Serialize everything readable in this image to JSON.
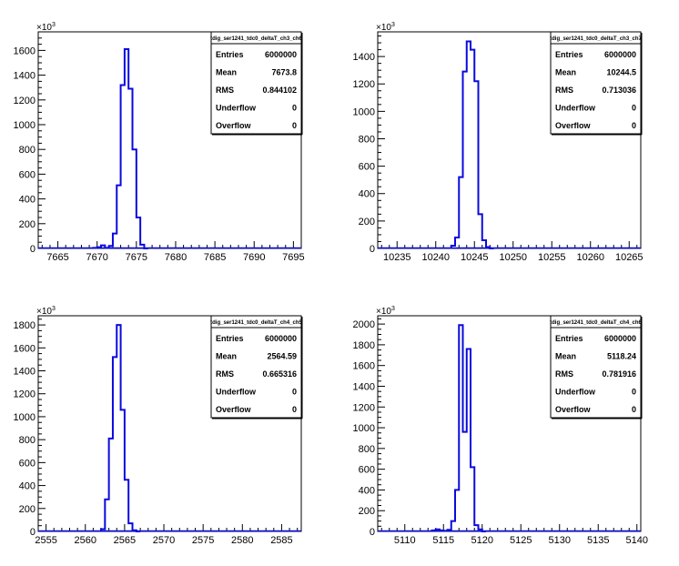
{
  "colors": {
    "hist": "#0a0adc",
    "axis": "#000000",
    "background": "#ffffff"
  },
  "chart_data": [
    {
      "type": "bar",
      "title": "tdig_ser1241_tdc0_deltaT_ch3_ch6",
      "y_multiplier": "10",
      "y_multiplier_exp": "3",
      "xlim": [
        7662.5,
        7696.0
      ],
      "ylim": [
        0,
        1750
      ],
      "x_ticks": [
        7665,
        7670,
        7675,
        7680,
        7685,
        7690,
        7695
      ],
      "y_ticks": [
        0,
        200,
        400,
        600,
        800,
        1000,
        1200,
        1400,
        1600
      ],
      "bin_width": 0.5,
      "bin_edges_start": 7669.5,
      "values": [
        5,
        10,
        25,
        5,
        20,
        120,
        510,
        1320,
        1610,
        1290,
        800,
        250,
        30,
        0
      ],
      "stats": {
        "labels": [
          "Entries",
          "Mean",
          "RMS",
          "Underflow",
          "Overflow"
        ],
        "values": [
          "6000000",
          "7673.8",
          "0.844102",
          "0",
          "0"
        ]
      }
    },
    {
      "type": "bar",
      "title": "tdig_ser1241_tdc0_deltaT_ch3_ch7",
      "y_multiplier": "10",
      "y_multiplier_exp": "3",
      "xlim": [
        10232.5,
        10266.5
      ],
      "ylim": [
        0,
        1580
      ],
      "x_ticks": [
        10235,
        10240,
        10245,
        10250,
        10255,
        10260,
        10265
      ],
      "y_ticks": [
        0,
        200,
        400,
        600,
        800,
        1000,
        1200,
        1400
      ],
      "bin_width": 0.5,
      "bin_edges_start": 10242.0,
      "values": [
        20,
        80,
        520,
        1290,
        1510,
        1450,
        1220,
        250,
        60,
        10,
        0
      ],
      "stats": {
        "labels": [
          "Entries",
          "Mean",
          "RMS",
          "Underflow",
          "Overflow"
        ],
        "values": [
          "6000000",
          "10244.5",
          "0.713036",
          "0",
          "0"
        ]
      }
    },
    {
      "type": "bar",
      "title": "tdig_ser1241_tdc0_deltaT_ch4_ch5",
      "y_multiplier": "10",
      "y_multiplier_exp": "3",
      "xlim": [
        2554.0,
        2587.5
      ],
      "ylim": [
        0,
        1880
      ],
      "x_ticks": [
        2555,
        2560,
        2565,
        2570,
        2575,
        2580,
        2585
      ],
      "y_ticks": [
        0,
        200,
        400,
        600,
        800,
        1000,
        1200,
        1400,
        1600,
        1800
      ],
      "bin_width": 0.5,
      "bin_edges_start": 2562.0,
      "values": [
        20,
        280,
        810,
        1520,
        1800,
        1060,
        450,
        70,
        10,
        0
      ],
      "stats": {
        "labels": [
          "Entries",
          "Mean",
          "RMS",
          "Underflow",
          "Overflow"
        ],
        "values": [
          "6000000",
          "2564.59",
          "0.665316",
          "0",
          "0"
        ]
      }
    },
    {
      "type": "bar",
      "title": "tdig_ser1241_tdc0_deltaT_ch4_ch6",
      "y_multiplier": "10",
      "y_multiplier_exp": "3",
      "xlim": [
        5106.5,
        5140.5
      ],
      "ylim": [
        0,
        2080
      ],
      "x_ticks": [
        5110,
        5115,
        5120,
        5125,
        5130,
        5135,
        5140
      ],
      "y_ticks": [
        0,
        200,
        400,
        600,
        800,
        1000,
        1200,
        1400,
        1600,
        1800,
        2000
      ],
      "bin_width": 0.5,
      "bin_edges_start": 5113.5,
      "values": [
        10,
        20,
        10,
        5,
        15,
        100,
        400,
        1990,
        960,
        1760,
        620,
        60,
        20,
        0
      ],
      "stats": {
        "labels": [
          "Entries",
          "Mean",
          "RMS",
          "Underflow",
          "Overflow"
        ],
        "values": [
          "6000000",
          "5118.24",
          "0.781916",
          "0",
          "0"
        ]
      }
    }
  ]
}
